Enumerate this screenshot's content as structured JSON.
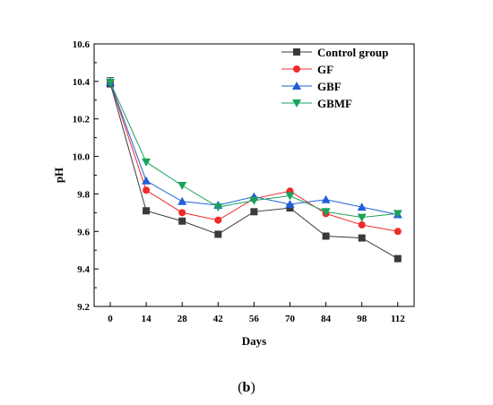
{
  "panel_label": {
    "open": "(",
    "letter": "b",
    "close": ")"
  },
  "chart_data": {
    "type": "line",
    "xlabel": "Days",
    "ylabel": "pH",
    "categories": [
      0,
      14,
      28,
      42,
      56,
      70,
      84,
      98,
      112
    ],
    "ylim": [
      9.2,
      10.6
    ],
    "yticks": [
      9.2,
      9.4,
      9.6,
      9.8,
      10.0,
      10.2,
      10.4,
      10.6
    ],
    "grid": false,
    "legend_position": "top-right",
    "series": [
      {
        "name": "Control group",
        "color": "#3a3a3a",
        "marker": "square",
        "values": [
          10.39,
          9.71,
          9.655,
          9.585,
          9.705,
          9.725,
          9.575,
          9.565,
          9.455
        ]
      },
      {
        "name": "GF",
        "color": "#ee2b2b",
        "marker": "circle",
        "values": [
          10.395,
          9.82,
          9.7,
          9.66,
          9.775,
          9.815,
          9.695,
          9.635,
          9.6
        ]
      },
      {
        "name": "GBF",
        "color": "#1f5fd6",
        "marker": "triangle-up",
        "values": [
          10.395,
          9.87,
          9.76,
          9.74,
          9.785,
          9.745,
          9.77,
          9.73,
          9.69
        ]
      },
      {
        "name": "GBMF",
        "color": "#1aa35a",
        "marker": "triangle-down",
        "values": [
          10.395,
          9.97,
          9.845,
          9.73,
          9.765,
          9.79,
          9.705,
          9.675,
          9.695
        ]
      }
    ]
  }
}
